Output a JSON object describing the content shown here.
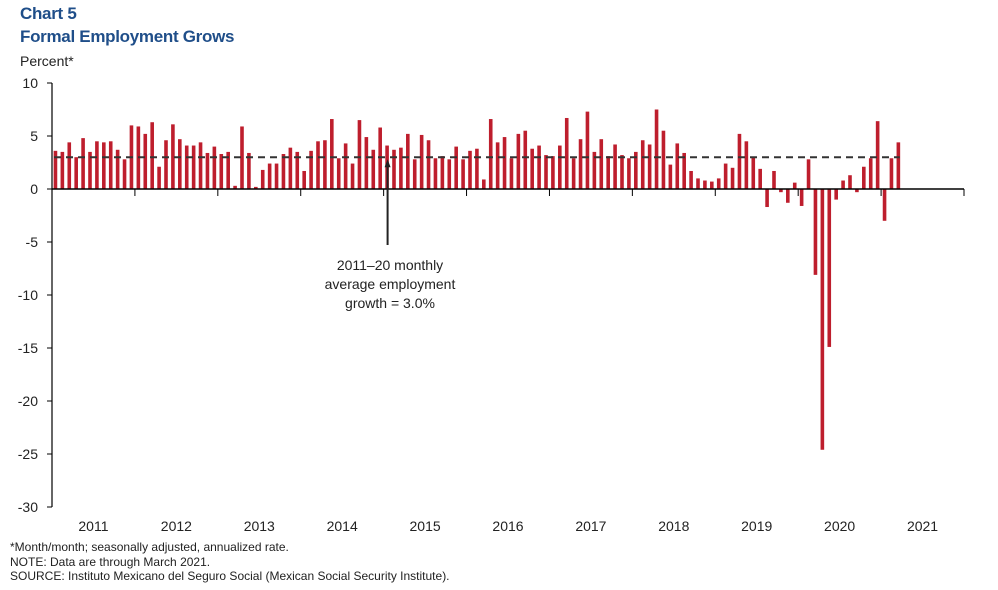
{
  "header": {
    "chart_label": "Chart 5",
    "title": "Formal Employment Grows",
    "unit": "Percent*"
  },
  "notes": [
    "*Month/month; seasonally adjusted, annualized rate.",
    "NOTE: Data are through March 2021.",
    "SOURCE: Instituto Mexicano del Seguro Social (Mexican Social Security Institute)."
  ],
  "colors": {
    "bar": "#be1e2d",
    "reference_line": "#333333",
    "title": "#1f4e89"
  },
  "chart_data": {
    "type": "bar",
    "title": "Formal Employment Grows",
    "subtitle": "Chart 5",
    "xlabel": "",
    "ylabel": "Percent*",
    "ylim": [
      -30,
      10
    ],
    "yticks": [
      10,
      5,
      0,
      -5,
      -10,
      -15,
      -20,
      -25,
      -30
    ],
    "grid": false,
    "legend": "none",
    "x_start": "2011-01",
    "x_end": "2021-03",
    "frequency": "monthly",
    "year_labels": [
      "2011",
      "2012",
      "2013",
      "2014",
      "2015",
      "2016",
      "2017",
      "2018",
      "2019",
      "2020",
      "2021"
    ],
    "series": [
      {
        "name": "Formal employment growth (m/m, SA, annualized)",
        "values": [
          3.6,
          3.5,
          4.4,
          3.0,
          4.8,
          3.5,
          4.5,
          4.4,
          4.5,
          3.7,
          2.8,
          6.0,
          5.9,
          5.2,
          6.3,
          2.1,
          4.6,
          6.1,
          4.7,
          4.1,
          4.1,
          4.4,
          3.4,
          4.0,
          3.3,
          3.5,
          0.3,
          5.9,
          3.4,
          0.2,
          1.8,
          2.4,
          2.4,
          3.3,
          3.9,
          3.5,
          1.7,
          3.6,
          4.5,
          4.6,
          6.6,
          2.9,
          4.3,
          2.4,
          6.5,
          4.9,
          3.7,
          5.8,
          4.1,
          3.7,
          3.9,
          5.2,
          2.8,
          5.1,
          4.6,
          2.9,
          3.1,
          2.8,
          4.0,
          2.8,
          3.6,
          3.8,
          0.9,
          6.6,
          4.4,
          4.9,
          2.9,
          5.2,
          5.5,
          3.8,
          4.1,
          3.2,
          3.1,
          4.1,
          6.7,
          2.9,
          4.7,
          7.3,
          3.5,
          4.7,
          3.1,
          4.2,
          3.2,
          2.9,
          3.5,
          4.6,
          4.2,
          7.5,
          5.5,
          2.3,
          4.3,
          3.4,
          1.7,
          1.0,
          0.8,
          0.7,
          1.0,
          2.4,
          2.0,
          5.2,
          4.5,
          3.0,
          1.9,
          -1.7,
          1.7,
          -0.3,
          -1.3,
          0.6,
          -1.6,
          2.8,
          -8.1,
          -24.6,
          -14.9,
          -1.0,
          0.8,
          1.3,
          -0.3,
          2.1,
          2.9,
          6.4,
          -3.0,
          2.9,
          4.4
        ]
      }
    ],
    "reference_line": {
      "value": 3.0,
      "style": "dashed",
      "label": "2011–20 monthly average employment growth = 3.0%"
    },
    "annotation": {
      "lines": [
        "2011–20 monthly",
        "average employment",
        "growth = 3.0%"
      ],
      "points_to_month_index": 48
    }
  }
}
